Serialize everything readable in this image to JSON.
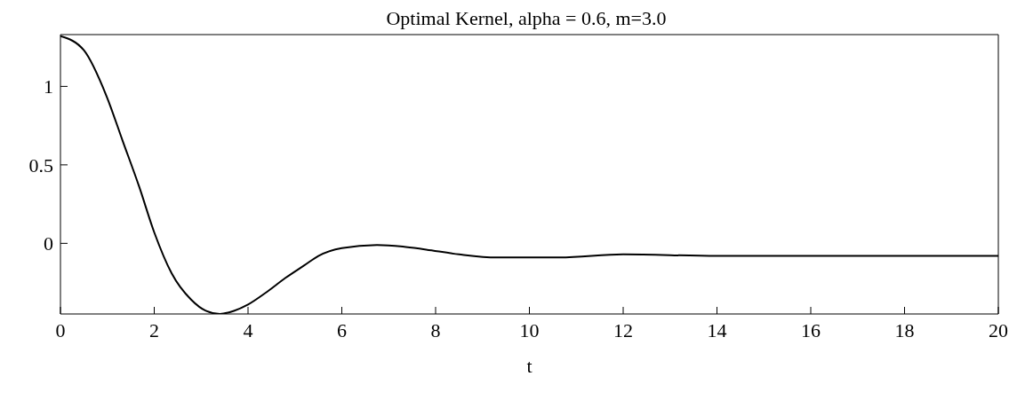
{
  "chart_data": {
    "type": "line",
    "title": "Optimal Kernel, alpha = 0.6, m=3.0",
    "xlabel": "t",
    "x": [
      0,
      0.5,
      0.98,
      1.33,
      1.68,
      2,
      2.37,
      2.79,
      3.1,
      3.4,
      3.7,
      4,
      4.4,
      4.8,
      5.2,
      5.5,
      6,
      6.75,
      7.3,
      7.8,
      8.5,
      9.3,
      10.65,
      12,
      14,
      16,
      18,
      20
    ],
    "series": [
      {
        "color": "#000000",
        "values": [
          1.32,
          1.23,
          0.94,
          0.65,
          0.36,
          0.07,
          -0.19,
          -0.36,
          -0.43,
          -0.45,
          -0.43,
          -0.39,
          -0.31,
          -0.22,
          -0.14,
          -0.08,
          -0.03,
          -0.01,
          -0.02,
          -0.04,
          -0.07,
          -0.09,
          -0.09,
          -0.07,
          -0.08,
          -0.08,
          -0.08,
          -0.08
        ]
      }
    ],
    "xlim": [
      0,
      20
    ],
    "xticks": [
      0,
      2,
      4,
      6,
      8,
      10,
      12,
      14,
      16,
      18,
      20
    ],
    "ylim": [
      -0.45,
      1.33
    ],
    "yticks": [
      0,
      0.5,
      1
    ],
    "grid": false,
    "marker": "none",
    "line_style": "solid"
  }
}
